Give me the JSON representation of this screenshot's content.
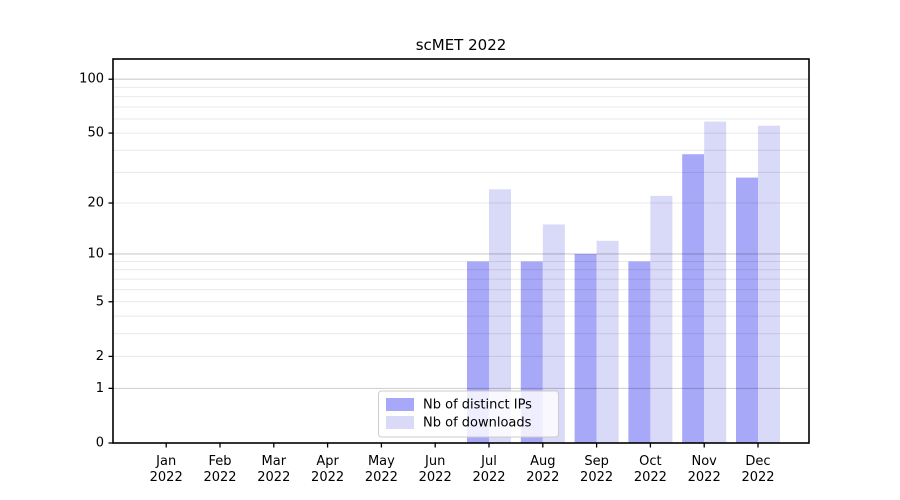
{
  "title": "scMET 2022",
  "colors": {
    "ips_bar": "#a8a8f8",
    "downloads_bar": "#d9d9f8",
    "grid_minor": "rgba(0,0,0,0.085)",
    "grid_major": "rgba(0,0,0,0.20)",
    "spine": "#000000",
    "legend_border": "#cccccc",
    "legend_bg": "rgba(255,255,255,0.8)",
    "text": "#000000"
  },
  "legend": {
    "items": [
      {
        "label": "Nb of distinct IPs",
        "color": "#a8a8f8"
      },
      {
        "label": "Nb of downloads",
        "color": "#d9d9f8"
      }
    ]
  },
  "axes": {
    "y_tick_values": [
      0,
      1,
      2,
      5,
      10,
      20,
      50,
      100
    ],
    "x_tick_labels": [
      "Jan 2022",
      "Feb 2022",
      "Mar 2022",
      "Apr 2022",
      "May 2022",
      "Jun 2022",
      "Jul 2022",
      "Aug 2022",
      "Sep 2022",
      "Oct 2022",
      "Nov 2022",
      "Dec 2022"
    ]
  },
  "chart_data": {
    "type": "bar",
    "title": "scMET 2022",
    "categories": [
      "Jan 2022",
      "Feb 2022",
      "Mar 2022",
      "Apr 2022",
      "May 2022",
      "Jun 2022",
      "Jul 2022",
      "Aug 2022",
      "Sep 2022",
      "Oct 2022",
      "Nov 2022",
      "Dec 2022"
    ],
    "series": [
      {
        "name": "Nb of distinct IPs",
        "color": "#a8a8f8",
        "values": [
          0,
          0,
          0,
          0,
          0,
          0,
          9,
          9,
          10,
          9,
          38,
          28
        ]
      },
      {
        "name": "Nb of downloads",
        "color": "#d9d9f8",
        "values": [
          0,
          0,
          0,
          0,
          0,
          0,
          24,
          15,
          12,
          22,
          58,
          55
        ]
      }
    ],
    "yscale": "log1p",
    "ylim": [
      0,
      130
    ],
    "yticks": [
      0,
      1,
      2,
      5,
      10,
      20,
      50,
      100
    ],
    "major_gridlines": [
      1,
      10,
      100
    ],
    "minor_gridlines": [
      2,
      3,
      4,
      5,
      6,
      7,
      8,
      9,
      20,
      30,
      40,
      50,
      60,
      70,
      80,
      90
    ],
    "grid": "horizontal",
    "legend_position": "inside lower-center-left",
    "bars_per_group": 2,
    "xlabel": "",
    "ylabel": ""
  }
}
